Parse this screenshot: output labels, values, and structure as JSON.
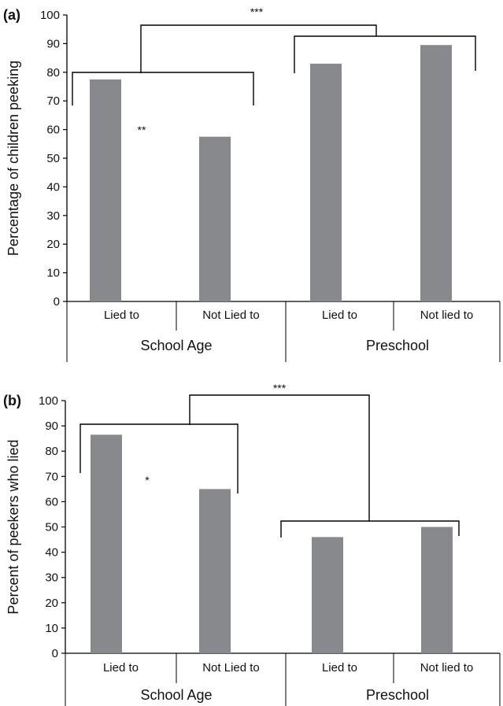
{
  "chart_data": [
    {
      "type": "bar",
      "panel_label": "(a)",
      "title": "",
      "xlabel": "",
      "ylabel": "Percentage of children peeking",
      "ylim": [
        0,
        100
      ],
      "yticks": [
        "0",
        "10",
        "20",
        "30",
        "40",
        "50",
        "60",
        "70",
        "80",
        "90",
        "100"
      ],
      "categories": [
        "Lied to",
        "Not Lied to",
        "Lied to",
        "Not lied to"
      ],
      "groups": [
        "School Age",
        "Preschool"
      ],
      "values": [
        77.5,
        57.5,
        83,
        89.5
      ],
      "bar_color": "#88898d",
      "grid": false,
      "significance": [
        {
          "label": "**",
          "between": "Lied to vs Not Lied to (School Age)"
        },
        {
          "label": "***",
          "between": "School Age vs Preschool"
        }
      ]
    },
    {
      "type": "bar",
      "panel_label": "(b)",
      "title": "",
      "xlabel": "",
      "ylabel": "Percent of peekers who lied",
      "ylim": [
        0,
        100
      ],
      "yticks": [
        "0",
        "10",
        "20",
        "30",
        "40",
        "50",
        "60",
        "70",
        "80",
        "90",
        "100"
      ],
      "categories": [
        "Lied to",
        "Not Lied to",
        "Lied to",
        "Not lied to"
      ],
      "groups": [
        "School Age",
        "Preschool"
      ],
      "values": [
        86.5,
        65,
        46,
        50
      ],
      "bar_color": "#88898d",
      "grid": false,
      "significance": [
        {
          "label": "*",
          "between": "Lied to vs Not Lied to (School Age)"
        },
        {
          "label": "***",
          "between": "School Age vs Preschool"
        }
      ]
    }
  ]
}
